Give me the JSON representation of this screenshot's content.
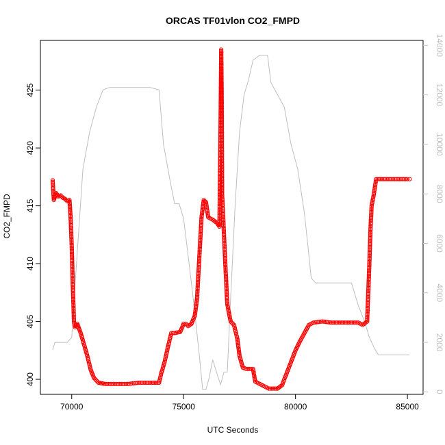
{
  "chart_data": {
    "type": "line",
    "title": "ORCAS TF01vlon CO2_FMPD",
    "xlabel": "UTC Seconds",
    "ylabel": "CO2_FMPD",
    "xlim": [
      68600,
      85700
    ],
    "ylim": [
      398.7,
      429.3
    ],
    "ylim_right": [
      -100,
      14200
    ],
    "x_ticks": [
      70000,
      75000,
      80000,
      85000
    ],
    "y_ticks": [
      400,
      405,
      410,
      415,
      420,
      425
    ],
    "y_ticks_right": [
      0,
      2000,
      4000,
      6000,
      8000,
      10000,
      12000,
      14000
    ],
    "colors": {
      "co2": "#ff0000",
      "altitude": "#bebebe"
    },
    "series": [
      {
        "axis": "left",
        "values": [
          [
            69150,
            417.2
          ],
          [
            69200,
            415.5
          ],
          [
            69300,
            416.1
          ],
          [
            69400,
            415.8
          ],
          [
            69500,
            415.9
          ],
          [
            69600,
            415.7
          ],
          [
            69700,
            415.6
          ],
          [
            69800,
            415.4
          ],
          [
            69900,
            415.5
          ],
          [
            69950,
            414.0
          ],
          [
            70000,
            411.5
          ],
          [
            70050,
            408.0
          ],
          [
            70100,
            405.0
          ],
          [
            70150,
            404.5
          ],
          [
            70250,
            404.8
          ],
          [
            70400,
            404.0
          ],
          [
            70550,
            403.0
          ],
          [
            70700,
            402.0
          ],
          [
            70850,
            400.8
          ],
          [
            71000,
            400.1
          ],
          [
            71200,
            399.7
          ],
          [
            71500,
            399.6
          ],
          [
            72000,
            399.6
          ],
          [
            72500,
            399.6
          ],
          [
            73000,
            399.7
          ],
          [
            73500,
            399.7
          ],
          [
            73900,
            399.7
          ],
          [
            74000,
            400.5
          ],
          [
            74150,
            401.5
          ],
          [
            74300,
            402.8
          ],
          [
            74450,
            404.0
          ],
          [
            74600,
            404.0
          ],
          [
            74850,
            404.1
          ],
          [
            75000,
            404.8
          ],
          [
            75100,
            404.8
          ],
          [
            75200,
            404.6
          ],
          [
            75350,
            404.8
          ],
          [
            75500,
            405.5
          ],
          [
            75600,
            407.0
          ],
          [
            75700,
            410.5
          ],
          [
            75800,
            414.0
          ],
          [
            75900,
            415.5
          ],
          [
            76000,
            415.3
          ],
          [
            76100,
            414.0
          ],
          [
            76300,
            413.8
          ],
          [
            76500,
            413.5
          ],
          [
            76600,
            413.2
          ],
          [
            76650,
            422.0
          ],
          [
            76680,
            428.5
          ],
          [
            76700,
            425.0
          ],
          [
            76720,
            416.0
          ],
          [
            76780,
            413.5
          ],
          [
            76850,
            410.5
          ],
          [
            76950,
            406.5
          ],
          [
            77100,
            405.0
          ],
          [
            77250,
            404.7
          ],
          [
            77400,
            403.5
          ],
          [
            77500,
            402.0
          ],
          [
            77650,
            401.0
          ],
          [
            77800,
            400.9
          ],
          [
            78000,
            400.9
          ],
          [
            78100,
            400.9
          ],
          [
            78200,
            399.8
          ],
          [
            78400,
            399.6
          ],
          [
            78600,
            399.4
          ],
          [
            78800,
            399.2
          ],
          [
            79000,
            399.2
          ],
          [
            79200,
            399.2
          ],
          [
            79400,
            399.5
          ],
          [
            79600,
            400.5
          ],
          [
            79800,
            401.5
          ],
          [
            80000,
            402.5
          ],
          [
            80200,
            403.3
          ],
          [
            80400,
            404.0
          ],
          [
            80600,
            404.7
          ],
          [
            80800,
            404.9
          ],
          [
            81200,
            405.0
          ],
          [
            81600,
            404.9
          ],
          [
            82000,
            404.9
          ],
          [
            82400,
            404.9
          ],
          [
            82800,
            404.9
          ],
          [
            83000,
            404.7
          ],
          [
            83200,
            405.0
          ],
          [
            83250,
            407.5
          ],
          [
            83300,
            410.0
          ],
          [
            83350,
            413.0
          ],
          [
            83400,
            415.0
          ],
          [
            83500,
            416.0
          ],
          [
            83600,
            417.3
          ],
          [
            84000,
            417.3
          ],
          [
            84500,
            417.3
          ],
          [
            85000,
            417.3
          ],
          [
            85100,
            417.3
          ]
        ]
      },
      {
        "axis": "right",
        "values": [
          [
            69150,
            1700
          ],
          [
            69250,
            2000
          ],
          [
            69500,
            2000
          ],
          [
            69800,
            2000
          ],
          [
            70000,
            2200
          ],
          [
            70200,
            5000
          ],
          [
            70500,
            9000
          ],
          [
            70800,
            10500
          ],
          [
            71100,
            11500
          ],
          [
            71400,
            12200
          ],
          [
            71700,
            12300
          ],
          [
            72500,
            12300
          ],
          [
            73500,
            12300
          ],
          [
            73900,
            12200
          ],
          [
            74100,
            10000
          ],
          [
            74400,
            8500
          ],
          [
            74600,
            7600
          ],
          [
            74800,
            7600
          ],
          [
            75000,
            7000
          ],
          [
            75200,
            5500
          ],
          [
            75400,
            4000
          ],
          [
            75700,
            1500
          ],
          [
            75850,
            100
          ],
          [
            76000,
            100
          ],
          [
            76150,
            600
          ],
          [
            76300,
            1300
          ],
          [
            76500,
            700
          ],
          [
            76650,
            300
          ],
          [
            76800,
            800
          ],
          [
            76950,
            800
          ],
          [
            77100,
            3800
          ],
          [
            77300,
            7500
          ],
          [
            77500,
            10500
          ],
          [
            77700,
            12000
          ],
          [
            77900,
            12600
          ],
          [
            78100,
            13400
          ],
          [
            78400,
            13600
          ],
          [
            78750,
            13600
          ],
          [
            78900,
            12500
          ],
          [
            79200,
            12000
          ],
          [
            79500,
            11500
          ],
          [
            79800,
            10000
          ],
          [
            80100,
            9000
          ],
          [
            80400,
            7200
          ],
          [
            80600,
            5500
          ],
          [
            80700,
            4600
          ],
          [
            80900,
            4400
          ],
          [
            82500,
            4400
          ],
          [
            82800,
            3500
          ],
          [
            83100,
            2800
          ],
          [
            83300,
            2200
          ],
          [
            83500,
            1800
          ],
          [
            83700,
            1500
          ],
          [
            85100,
            1500
          ]
        ]
      }
    ]
  }
}
